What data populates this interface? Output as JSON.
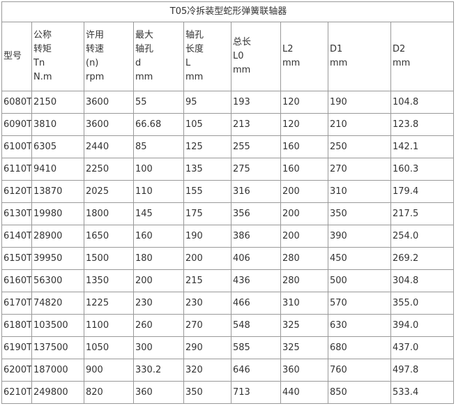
{
  "table": {
    "title": "T05冷拆装型蛇形弹簧联轴器",
    "header": [
      [
        "型号"
      ],
      [
        "公称",
        "转矩",
        "Tn",
        "N.m"
      ],
      [
        "许用",
        "转速",
        "(n)",
        "rpm"
      ],
      [
        "最大",
        "轴孔",
        "d",
        "mm"
      ],
      [
        "轴孔",
        "长度",
        "L",
        "mm"
      ],
      [
        "总长",
        "L0",
        "mm"
      ],
      [
        "L2",
        "mm"
      ],
      [
        "D1",
        "mm"
      ],
      [
        "D2",
        "mm"
      ]
    ],
    "rows": [
      [
        "6080T",
        "2150",
        "3600",
        "55",
        "95",
        "193",
        "120",
        "190",
        "104.8"
      ],
      [
        "6090T",
        "3810",
        "3600",
        "66.68",
        "105",
        "213",
        "120",
        "210",
        "123.8"
      ],
      [
        "6100T",
        "6305",
        "2440",
        "85",
        "125",
        "255",
        "160",
        "250",
        "142.1"
      ],
      [
        "6110T",
        "9410",
        "2250",
        "100",
        "135",
        "275",
        "160",
        "270",
        "160.3"
      ],
      [
        "6120T",
        "13870",
        "2025",
        "110",
        "155",
        "316",
        "200",
        "310",
        "179.4"
      ],
      [
        "6130T",
        "19980",
        "1800",
        "145",
        "175",
        "356",
        "200",
        "350",
        "217.5"
      ],
      [
        "6140T",
        "28900",
        "1650",
        "160",
        "190",
        "386",
        "200",
        "390",
        "254.0"
      ],
      [
        "6150T",
        "39950",
        "1500",
        "180",
        "200",
        "406",
        "280",
        "450",
        "269.2"
      ],
      [
        "6160T",
        "56300",
        "1350",
        "200",
        "215",
        "436",
        "280",
        "500",
        "304.8"
      ],
      [
        "6170T",
        "74820",
        "1225",
        "230",
        "230",
        "466",
        "310",
        "570",
        "355.0"
      ],
      [
        "6180T",
        "103500",
        "1100",
        "260",
        "270",
        "548",
        "325",
        "630",
        "394.0"
      ],
      [
        "6190T",
        "137500",
        "1050",
        "300",
        "290",
        "585",
        "325",
        "680",
        "437.0"
      ],
      [
        "6200T",
        "187000",
        "900",
        "330.2",
        "320",
        "646",
        "360",
        "760",
        "497.8"
      ],
      [
        "6210T",
        "249800",
        "820",
        "360",
        "350",
        "713",
        "440",
        "850",
        "533.4"
      ]
    ]
  }
}
